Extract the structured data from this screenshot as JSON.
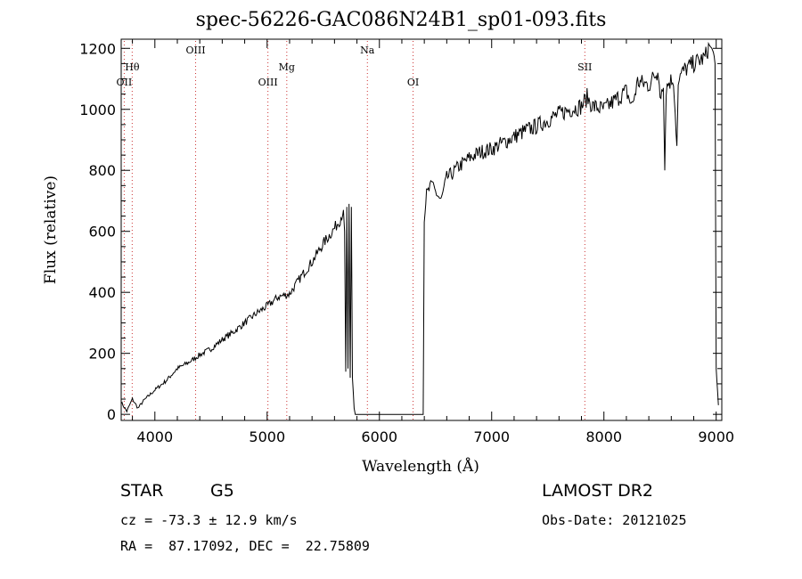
{
  "chart_data": {
    "type": "line",
    "title": "spec-56226-GAC086N24B1_sp01-093.fits",
    "xlabel": "Wavelength (Å)",
    "ylabel": "Flux (relative)",
    "xlim": [
      3700,
      9050
    ],
    "ylim": [
      -20,
      1230
    ],
    "x_ticks": [
      4000,
      5000,
      6000,
      7000,
      8000,
      9000
    ],
    "x_minor_step": 200,
    "y_ticks": [
      0,
      200,
      400,
      600,
      800,
      1000,
      1200
    ],
    "y_minor_step": 50,
    "grid": false,
    "line_color": "#000000",
    "marker_color": "#cc3333",
    "line_markers": [
      {
        "label": "Hθ",
        "x": 3798,
        "row": 0
      },
      {
        "label": "OII",
        "x": 3727,
        "row": 1
      },
      {
        "label": "OIII",
        "x": 4363,
        "row": -1
      },
      {
        "label": "OIII",
        "x": 5007,
        "row": 1
      },
      {
        "label": "Mg",
        "x": 5175,
        "row": 0
      },
      {
        "label": "Na",
        "x": 5893,
        "row": -1
      },
      {
        "label": "OI",
        "x": 6300,
        "row": 1
      },
      {
        "label": "SII",
        "x": 7830,
        "row": 0
      }
    ],
    "series": [
      {
        "x": [
          3700,
          3750,
          3800,
          3850,
          3900,
          4000,
          4100,
          4200,
          4300,
          4400,
          4500,
          4600,
          4700,
          4800,
          4900,
          5000,
          5100,
          5200,
          5300,
          5400,
          5500,
          5600,
          5650,
          5680,
          5690,
          5700,
          5710,
          5720,
          5730,
          5740,
          5750,
          5760,
          5775,
          5785,
          5800,
          6000,
          6200,
          6350,
          6390,
          6400,
          6420,
          6450,
          6480,
          6500,
          6550,
          6600,
          6650,
          6700,
          6800,
          6900,
          7000,
          7100,
          7200,
          7300,
          7400,
          7500,
          7600,
          7700,
          7800,
          7850,
          7900,
          8000,
          8100,
          8200,
          8250,
          8300,
          8400,
          8450,
          8480,
          8500,
          8530,
          8542,
          8555,
          8580,
          8620,
          8650,
          8662,
          8680,
          8720,
          8800,
          8900,
          8940,
          8960,
          8990,
          9000,
          9020
        ],
        "values": [
          40,
          10,
          50,
          20,
          45,
          80,
          110,
          150,
          170,
          195,
          215,
          245,
          270,
          300,
          330,
          355,
          385,
          395,
          450,
          500,
          560,
          610,
          640,
          670,
          600,
          140,
          680,
          150,
          690,
          120,
          680,
          120,
          20,
          0,
          0,
          0,
          0,
          0,
          0,
          630,
          720,
          740,
          760,
          730,
          700,
          775,
          790,
          810,
          840,
          860,
          870,
          890,
          910,
          930,
          945,
          965,
          985,
          1000,
          1010,
          1040,
          1010,
          1000,
          1030,
          1060,
          1010,
          1090,
          1080,
          1110,
          1120,
          1060,
          1070,
          800,
          1070,
          1090,
          1100,
          880,
          1080,
          1110,
          1130,
          1150,
          1170,
          1210,
          1200,
          1150,
          150,
          30
        ]
      }
    ]
  },
  "info": {
    "object_type": "STAR",
    "subclass": "G5",
    "survey": "LAMOST DR2",
    "redshift": "cz = -73.3 ± 12.9 km/s",
    "obs_date": "Obs-Date: 20121025",
    "coords": "RA =  87.17092, DEC =  22.75809"
  }
}
